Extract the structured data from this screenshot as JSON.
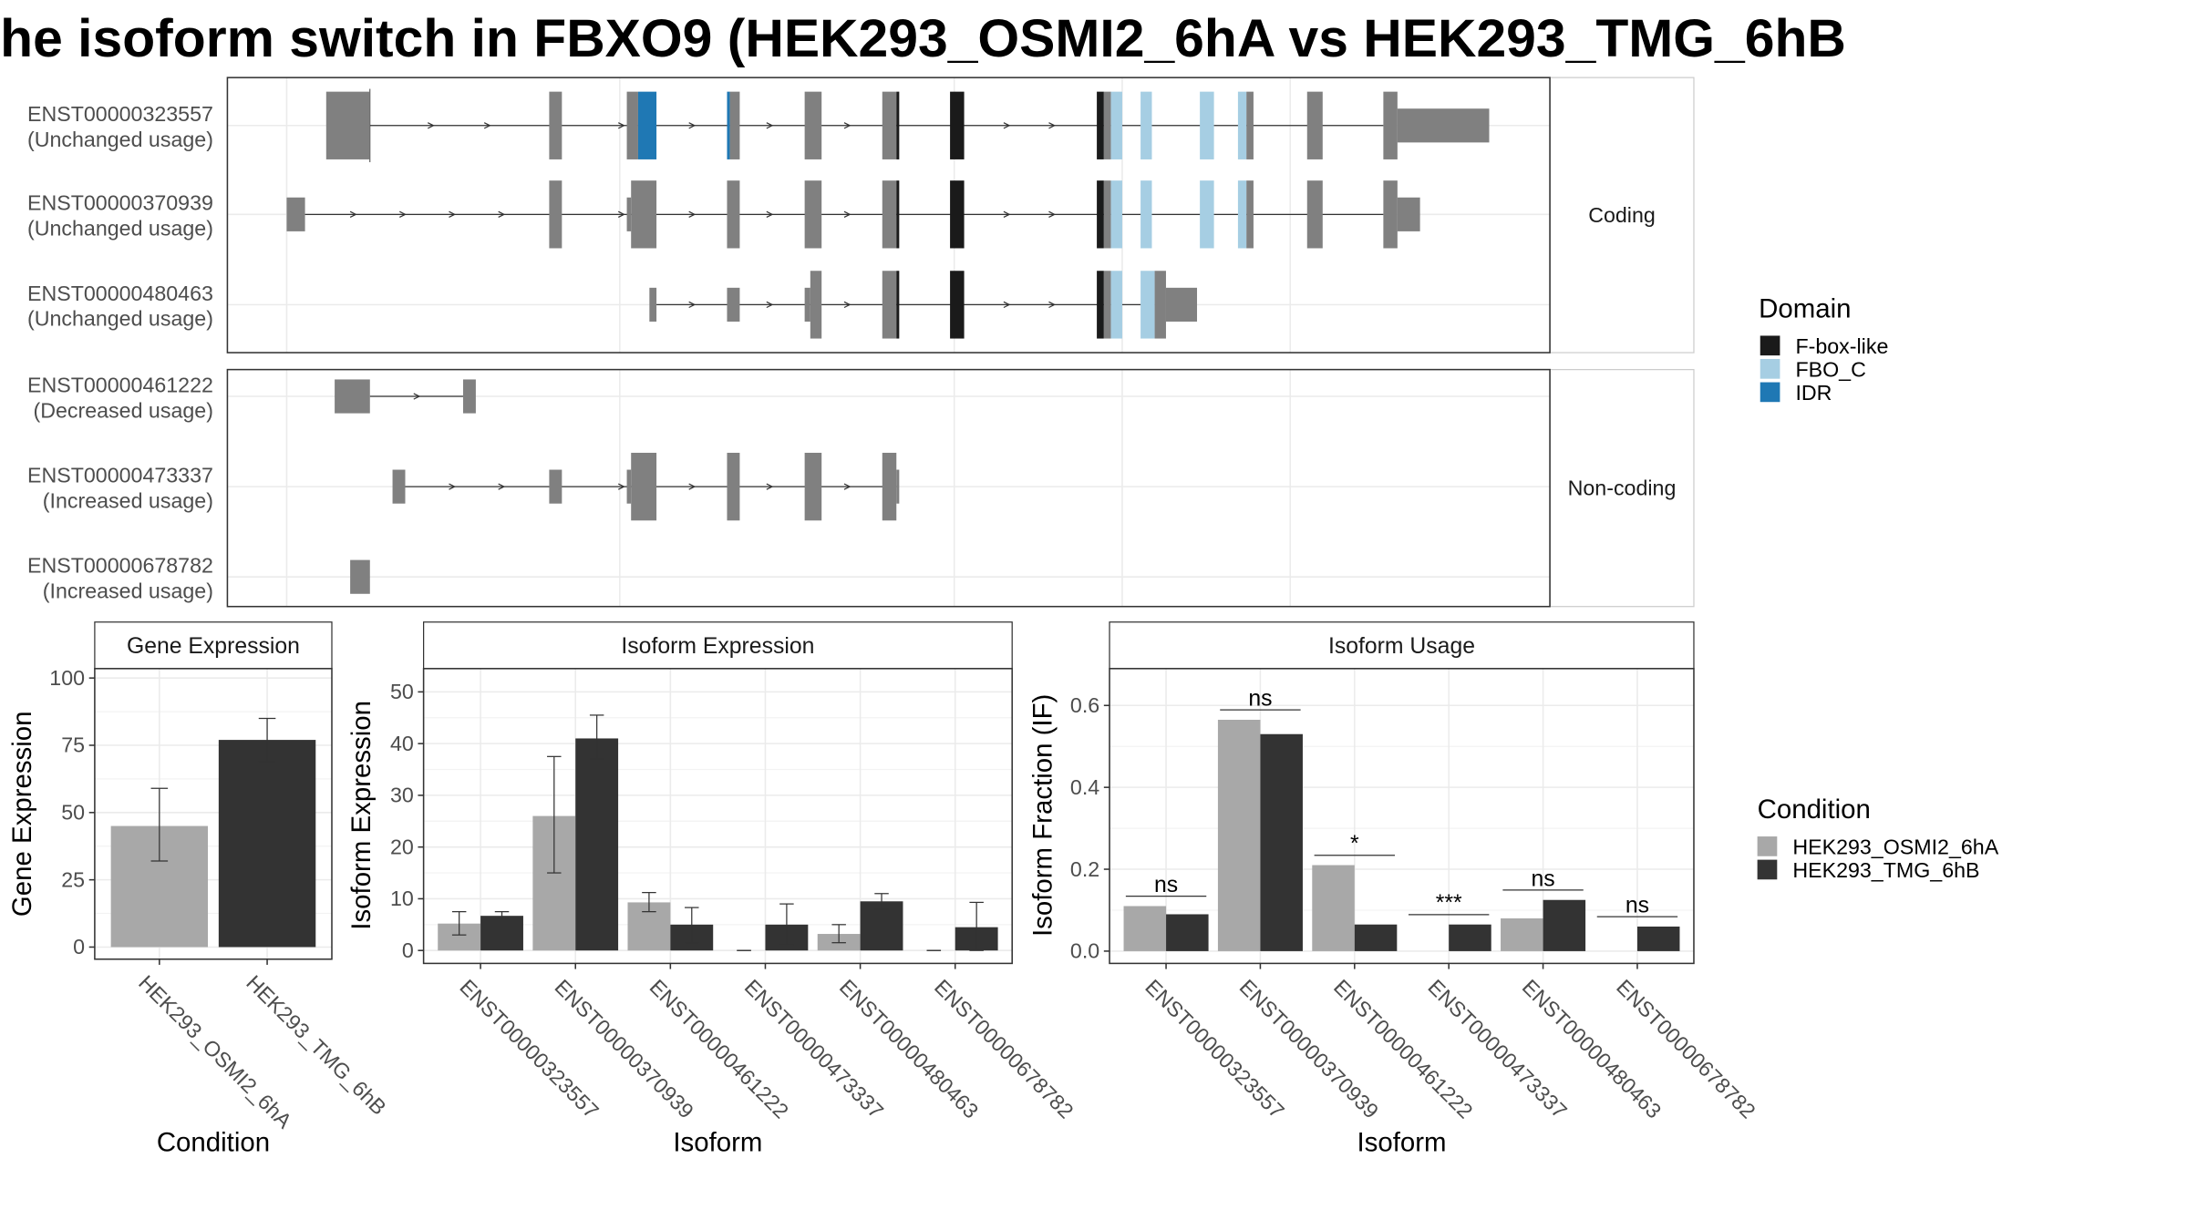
{
  "title": "he isoform switch in FBXO9 (HEK293_OSMI2_6hA vs HEK293_TMG_6hB",
  "colors": {
    "exon": "#808080",
    "FBox": "#1a1a1a",
    "FBOC": "#a6cee3",
    "IDR": "#1f78b4",
    "cond1": "#a8a8a8",
    "cond2": "#333333",
    "grid": "#ebebeb",
    "border": "#333333",
    "strip": "#ffffff"
  },
  "transcript_panel": {
    "strips": [
      "Coding",
      "Non-coding"
    ],
    "transcripts": [
      {
        "id": "ENST00000323557",
        "usage": "(Unchanged usage)",
        "group": 0,
        "exons": [
          [
            231,
            262,
            "E",
            0
          ],
          [
            389,
            398,
            "E",
            0
          ],
          [
            444,
            452,
            "E",
            0
          ],
          [
            452,
            465,
            "IDR",
            0
          ],
          [
            515,
            517,
            "IDR",
            0
          ],
          [
            517,
            524,
            "E",
            0
          ],
          [
            570,
            582,
            "E",
            0
          ],
          [
            625,
            635,
            "E",
            0
          ],
          [
            635,
            637,
            "FBox",
            0
          ],
          [
            673,
            683,
            "FBox",
            0
          ],
          [
            777,
            782,
            "FBox",
            0
          ],
          [
            782,
            787,
            "E",
            0
          ],
          [
            787,
            795,
            "FBOC",
            0
          ],
          [
            808,
            816,
            "FBOC",
            0
          ],
          [
            850,
            860,
            "FBOC",
            0
          ],
          [
            877,
            883,
            "FBOC",
            0
          ],
          [
            883,
            888,
            "E",
            0
          ],
          [
            926,
            937,
            "E",
            0
          ],
          [
            980,
            990,
            "E",
            0
          ],
          [
            990,
            1055,
            "E",
            1
          ]
        ],
        "line": [
          262,
          980
        ],
        "arrows": [
          305,
          345,
          440,
          490,
          545,
          600,
          713,
          745
        ],
        "tick": 262
      },
      {
        "id": "ENST00000370939",
        "usage": "(Unchanged usage)",
        "group": 0,
        "exons": [
          [
            203,
            216,
            "E",
            1
          ],
          [
            389,
            398,
            "E",
            0
          ],
          [
            444,
            447,
            "E",
            1
          ],
          [
            447,
            465,
            "E",
            0
          ],
          [
            515,
            524,
            "E",
            0
          ],
          [
            570,
            582,
            "E",
            0
          ],
          [
            625,
            635,
            "E",
            0
          ],
          [
            635,
            637,
            "FBox",
            0
          ],
          [
            673,
            683,
            "FBox",
            0
          ],
          [
            777,
            782,
            "FBox",
            0
          ],
          [
            782,
            787,
            "E",
            0
          ],
          [
            787,
            795,
            "FBOC",
            0
          ],
          [
            808,
            816,
            "FBOC",
            0
          ],
          [
            850,
            860,
            "FBOC",
            0
          ],
          [
            877,
            883,
            "FBOC",
            0
          ],
          [
            883,
            888,
            "E",
            0
          ],
          [
            926,
            937,
            "E",
            0
          ],
          [
            980,
            990,
            "E",
            0
          ],
          [
            990,
            1006,
            "E",
            1
          ]
        ],
        "line": [
          216,
          980
        ],
        "arrows": [
          250,
          285,
          320,
          355,
          440,
          490,
          545,
          600,
          713,
          745
        ]
      },
      {
        "id": "ENST00000480463",
        "usage": "(Unchanged usage)",
        "group": 0,
        "exons": [
          [
            460,
            465,
            "E",
            1
          ],
          [
            515,
            524,
            "E",
            1
          ],
          [
            570,
            574,
            "E",
            1
          ],
          [
            574,
            582,
            "E",
            0
          ],
          [
            625,
            635,
            "E",
            0
          ],
          [
            635,
            637,
            "FBox",
            0
          ],
          [
            673,
            683,
            "FBox",
            0
          ],
          [
            777,
            782,
            "FBox",
            0
          ],
          [
            782,
            787,
            "E",
            0
          ],
          [
            787,
            795,
            "FBOC",
            0
          ],
          [
            808,
            818,
            "FBOC",
            0
          ],
          [
            818,
            826,
            "E",
            0
          ],
          [
            826,
            848,
            "E",
            1
          ]
        ],
        "line": [
          465,
          818
        ],
        "arrows": [
          490,
          545,
          600,
          713,
          745
        ]
      },
      {
        "id": "ENST00000461222",
        "usage": "(Decreased usage)",
        "group": 1,
        "exons": [
          [
            237,
            262,
            "E",
            1
          ],
          [
            328,
            337,
            "E",
            1
          ]
        ],
        "line": [
          262,
          328
        ],
        "arrows": [
          295
        ]
      },
      {
        "id": "ENST00000473337",
        "usage": "(Increased usage)",
        "group": 1,
        "exons": [
          [
            278,
            287,
            "E",
            1
          ],
          [
            389,
            398,
            "E",
            1
          ],
          [
            444,
            447,
            "E",
            1
          ],
          [
            447,
            465,
            "E",
            0
          ],
          [
            515,
            524,
            "E",
            0
          ],
          [
            570,
            582,
            "E",
            0
          ],
          [
            625,
            635,
            "E",
            0
          ],
          [
            635,
            637,
            "E",
            1
          ]
        ],
        "line": [
          287,
          635
        ],
        "arrows": [
          320,
          355,
          440,
          490,
          545,
          600
        ]
      },
      {
        "id": "ENST00000678782",
        "usage": "(Increased usage)",
        "group": 1,
        "exons": [
          [
            248,
            262,
            "E",
            1
          ]
        ],
        "line": null,
        "arrows": []
      }
    ],
    "legend": {
      "title": "Domain",
      "items": [
        {
          "label": "F-box-like",
          "key": "FBox"
        },
        {
          "label": "FBO_C",
          "key": "FBOC"
        },
        {
          "label": "IDR",
          "key": "IDR"
        }
      ]
    }
  },
  "chart_data": [
    {
      "type": "bar",
      "title": "Gene Expression",
      "xlabel": "Condition",
      "ylabel": "Gene Expression",
      "categories": [
        "HEK293_OSMI2_6hA",
        "HEK293_TMG_6hB"
      ],
      "values": [
        45,
        77
      ],
      "errors": [
        [
          32,
          59
        ],
        [
          69,
          85
        ]
      ],
      "ylim": [
        -4.5,
        103.5
      ],
      "yticks": [
        0,
        25,
        50,
        75,
        100
      ],
      "grid": true
    },
    {
      "type": "bar",
      "title": "Isoform Expression",
      "xlabel": "Isoform",
      "ylabel": "Isoform Expression",
      "categories": [
        "ENST00000323557",
        "ENST00000370939",
        "ENST00000461222",
        "ENST00000473337",
        "ENST00000480463",
        "ENST00000678782"
      ],
      "series": [
        {
          "name": "HEK293_OSMI2_6hA",
          "values": [
            5.2,
            26,
            9.3,
            0,
            3.2,
            0
          ],
          "errors": [
            [
              3,
              7.5
            ],
            [
              15,
              37.5
            ],
            [
              7.5,
              11.2
            ],
            [
              0,
              0
            ],
            [
              1.5,
              5
            ],
            [
              0,
              0
            ]
          ]
        },
        {
          "name": "HEK293_TMG_6hB",
          "values": [
            6.7,
            41,
            5,
            5,
            9.5,
            4.5
          ],
          "errors": [
            [
              6,
              7.5
            ],
            [
              37,
              45.5
            ],
            [
              1.5,
              8.3
            ],
            [
              1,
              9
            ],
            [
              8,
              11
            ],
            [
              0,
              9.3
            ]
          ]
        }
      ],
      "ylim": [
        -2.5,
        54.5
      ],
      "yticks": [
        0,
        10,
        20,
        30,
        40,
        50
      ],
      "grid": true
    },
    {
      "type": "bar",
      "title": "Isoform Usage",
      "xlabel": "Isoform",
      "ylabel": "Isoform Fraction (IF)",
      "categories": [
        "ENST00000323557",
        "ENST00000370939",
        "ENST00000461222",
        "ENST00000473337",
        "ENST00000480463",
        "ENST00000678782"
      ],
      "series": [
        {
          "name": "HEK293_OSMI2_6hA",
          "values": [
            0.11,
            0.565,
            0.21,
            0,
            0.08,
            0
          ]
        },
        {
          "name": "HEK293_TMG_6hB",
          "values": [
            0.09,
            0.53,
            0.065,
            0.065,
            0.125,
            0.06
          ]
        }
      ],
      "significance": [
        "ns",
        "ns",
        "*",
        "***",
        "ns",
        "ns"
      ],
      "ylim": [
        -0.03,
        0.69
      ],
      "yticks": [
        0.0,
        0.2,
        0.4,
        0.6
      ],
      "ytick_labels": [
        "0.0",
        "0.2",
        "0.4",
        "0.6"
      ],
      "grid": true
    }
  ],
  "condition_legend": {
    "title": "Condition",
    "items": [
      {
        "label": "HEK293_OSMI2_6hA",
        "key": "cond1"
      },
      {
        "label": "HEK293_TMG_6hB",
        "key": "cond2"
      }
    ]
  }
}
